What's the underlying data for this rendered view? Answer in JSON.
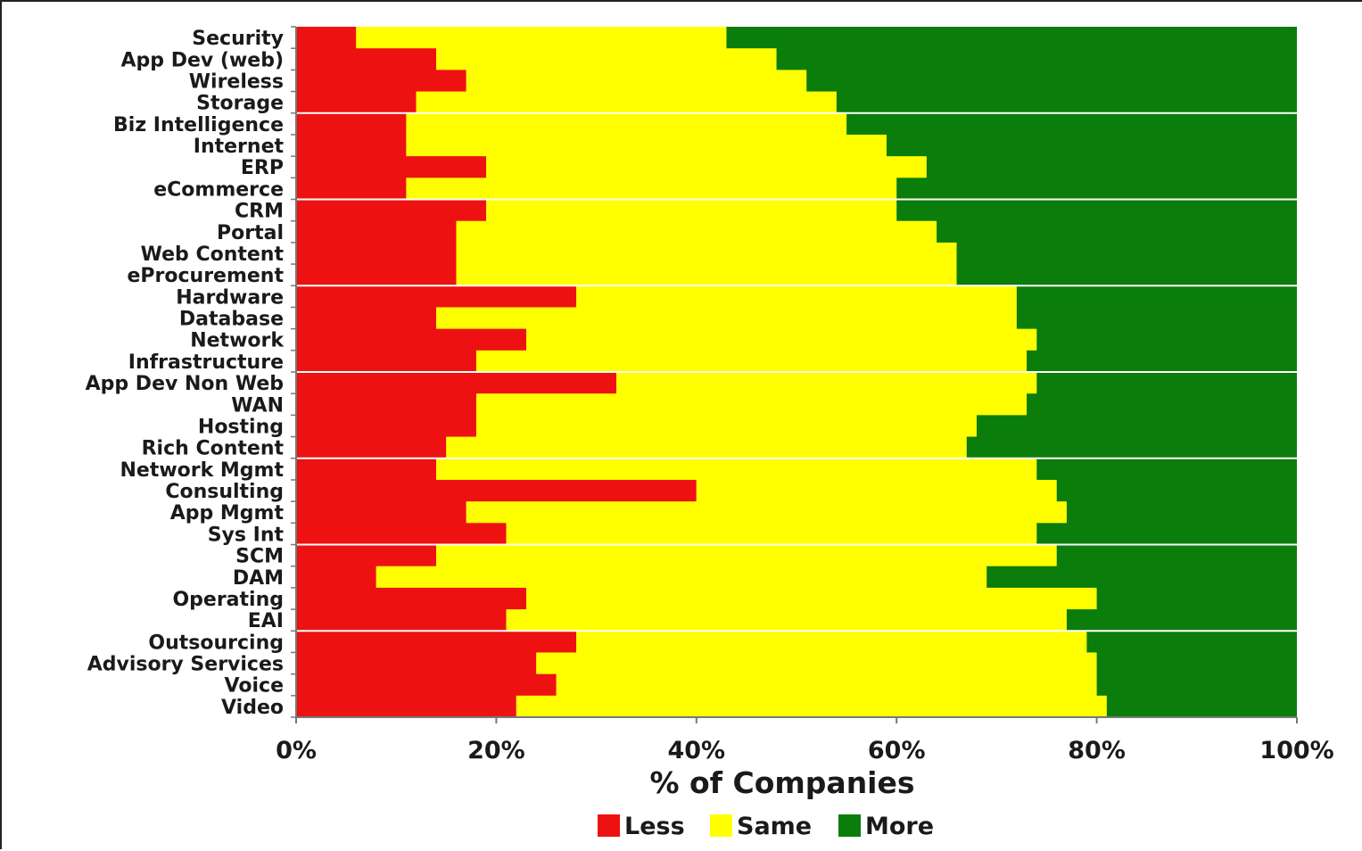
{
  "chart_data": {
    "type": "bar",
    "orientation": "horizontal",
    "stacked": "percent",
    "categories": [
      "Security",
      "App Dev (web)",
      "Wireless",
      "Storage",
      "Biz Intelligence",
      "Internet",
      "ERP",
      "eCommerce",
      "CRM",
      "Portal",
      "Web Content",
      "eProcurement",
      "Hardware",
      "Database",
      "Network",
      "Infrastructure",
      "App Dev Non Web",
      "WAN",
      "Hosting",
      "Rich Content",
      "Network Mgmt",
      "Consulting",
      "App Mgmt",
      "Sys Int",
      "SCM",
      "DAM",
      "Operating",
      "EAI",
      "Outsourcing",
      "Advisory Services",
      "Voice",
      "Video"
    ],
    "series": [
      {
        "name": "Less",
        "color": "#ee1111",
        "values": [
          6,
          14,
          17,
          12,
          11,
          11,
          19,
          11,
          19,
          16,
          16,
          16,
          28,
          14,
          23,
          18,
          32,
          18,
          18,
          15,
          14,
          40,
          17,
          21,
          14,
          8,
          23,
          21,
          28,
          24,
          26,
          22
        ]
      },
      {
        "name": "Same",
        "color": "#ffff00",
        "values": [
          37,
          34,
          34,
          42,
          44,
          48,
          44,
          49,
          41,
          48,
          50,
          50,
          44,
          58,
          51,
          55,
          42,
          55,
          50,
          52,
          60,
          36,
          60,
          53,
          62,
          61,
          57,
          56,
          51,
          56,
          54,
          59
        ]
      },
      {
        "name": "More",
        "color": "#0a7d0a",
        "values": [
          57,
          52,
          49,
          46,
          45,
          41,
          37,
          40,
          40,
          36,
          34,
          34,
          28,
          28,
          26,
          27,
          26,
          27,
          32,
          33,
          26,
          24,
          23,
          26,
          24,
          31,
          20,
          23,
          21,
          20,
          20,
          19
        ]
      }
    ],
    "xlabel": "% of Companies",
    "ylabel": "",
    "xlim": [
      0,
      100
    ],
    "x_ticks": [
      "0%",
      "20%",
      "40%",
      "60%",
      "80%",
      "100%"
    ],
    "legend": {
      "placement": "bottom",
      "entries": [
        "Less",
        "Same",
        "More"
      ]
    },
    "grid": false
  }
}
